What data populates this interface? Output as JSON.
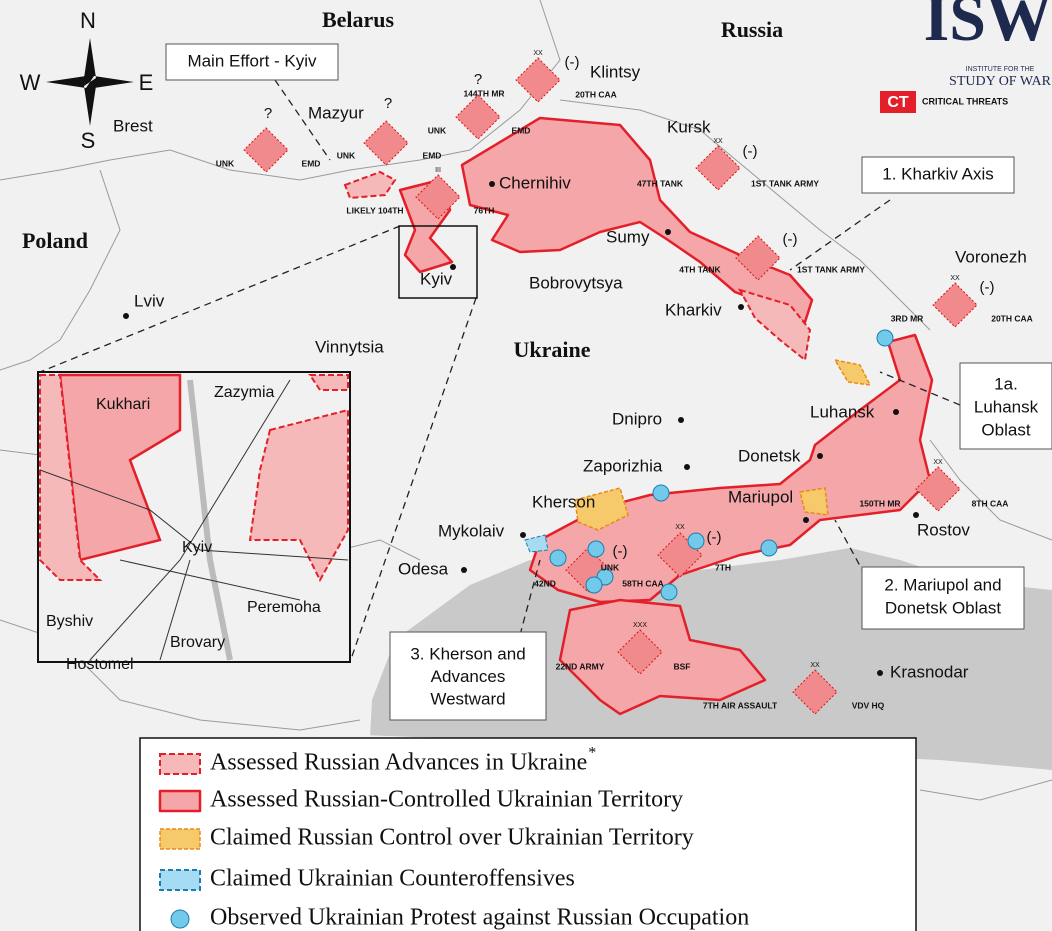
{
  "countries": [
    "Belarus",
    "Russia",
    "Poland",
    "Ukraine"
  ],
  "cities": [
    "Brest",
    "Mazyur",
    "Klintsy",
    "Chernihiv",
    "Kursk",
    "Sumy",
    "Kyiv",
    "Bobrovytsya",
    "Kharkiv",
    "Lviv",
    "Vinnytsia",
    "Voronezh",
    "Luhansk",
    "Dnipro",
    "Donetsk",
    "Zaporizhia",
    "Kherson",
    "Mariupol",
    "Mykolaiv",
    "Odesa",
    "Rostov",
    "Krasnodar"
  ],
  "units": [
    "UNK",
    "EMD",
    "UNK",
    "EMD",
    "LIKELY 104TH",
    "76TH",
    "144TH MR",
    "UNK",
    "EMD",
    "20TH CAA",
    "47TH TANK",
    "1ST TANK ARMY",
    "4TH TANK",
    "1ST TANK ARMY",
    "3RD MR",
    "20TH CAA",
    "150TH MR",
    "8TH CAA",
    "42ND",
    "UNK",
    "58TH CAA",
    "7TH",
    "22ND ARMY",
    "BSF",
    "7TH AIR ASSAULT",
    "VDV HQ"
  ],
  "symbols": {
    "unknown": "?",
    "reduced": "(-)",
    "division": "XX",
    "regiment": "III",
    "army": "XXX"
  },
  "callouts": [
    {
      "lines": [
        "Main Effort - Kyiv"
      ]
    },
    {
      "lines": [
        "1. Kharkiv Axis"
      ]
    },
    {
      "lines": [
        "1a.",
        "Luhansk",
        "Oblast"
      ]
    },
    {
      "lines": [
        "2. Mariupol and",
        "Donetsk Oblast"
      ]
    },
    {
      "lines": [
        "3. Kherson and",
        "Advances",
        "Westward"
      ]
    }
  ],
  "inset": {
    "places": [
      "Kukhari",
      "Zazymia",
      "Kyiv",
      "Byshiv",
      "Hostomel",
      "Brovary",
      "Peremoha"
    ]
  },
  "legend": {
    "items": [
      "Assessed Russian Advances in Ukraine",
      "Assessed Russian-Controlled Ukrainian Territory",
      "Claimed Russian Control over Ukrainian Territory",
      "Claimed Ukrainian Counteroffensives",
      "Observed Ukrainian Protest against Russian Occupation"
    ],
    "asterisk": "*"
  },
  "logo": {
    "name": "ISW",
    "line1": "INSTITUTE FOR THE",
    "line2": "STUDY OF WAR",
    "ct": "CT",
    "ct_name": "CRITICAL THREATS"
  },
  "compass": {
    "north": "N",
    "east": "E",
    "south": "S",
    "west": "W"
  }
}
